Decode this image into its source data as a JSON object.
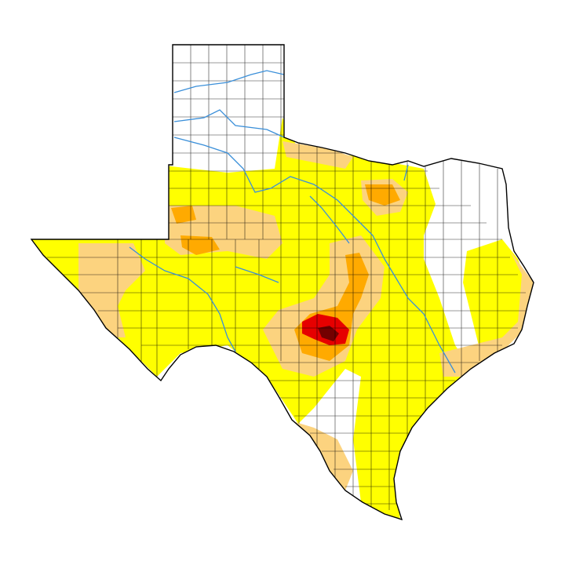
{
  "map": {
    "colors": {
      "none": "#ffffff",
      "d0": "#ffff00",
      "d1": "#fcd37f",
      "d2": "#ffaa00",
      "d3": "#e60000",
      "d4": "#730000",
      "river": "#3a8fd9",
      "border": "#000000"
    }
  }
}
